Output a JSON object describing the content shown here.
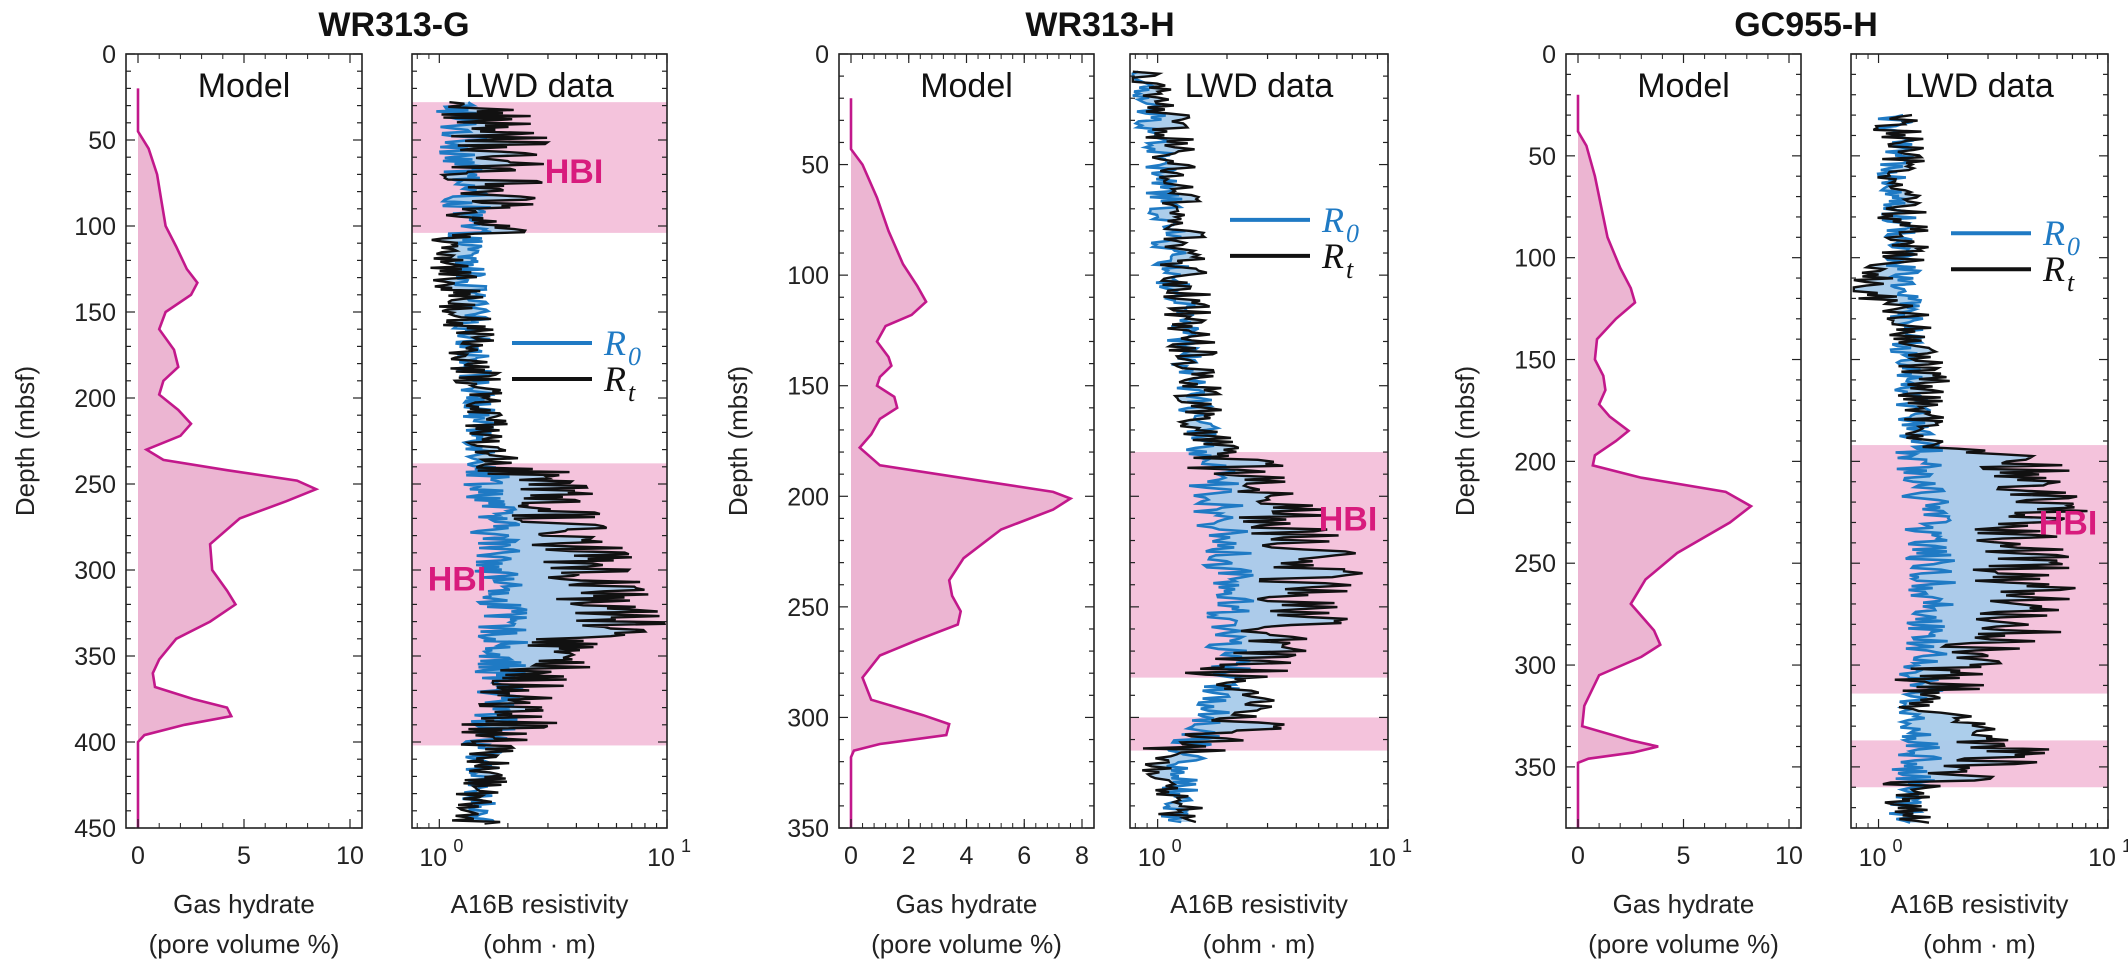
{
  "colors": {
    "model_line": "#c2188b",
    "model_fill": "#ecb5d2",
    "hbi_band": "#f4c3dc",
    "r0_line": "#1f7ac4",
    "rt_line": "#111111",
    "gap_fill": "#a8cbea",
    "hbi_text": "#d81b7d",
    "axis": "#222222"
  },
  "common": {
    "ylabel": "Depth (mbsf)",
    "model_title": "Model",
    "lwd_title": "LWD data",
    "model_xlabel_1": "Gas hydrate",
    "model_xlabel_2": "(pore volume %)",
    "lwd_xlabel_1": "A16B resistivity",
    "lwd_xlabel_2": "(ohm · m)",
    "hbi_label": "HBI",
    "legend_r0": "R",
    "legend_r0_sub": "0",
    "legend_rt": "R",
    "legend_rt_sub": "t"
  },
  "chart_data": [
    {
      "type": "line",
      "well": "WR313-G",
      "ylim": [
        0,
        450
      ],
      "yticks": [
        0,
        50,
        100,
        150,
        200,
        250,
        300,
        350,
        400,
        450
      ],
      "model": {
        "xlim": [
          0,
          10
        ],
        "xticks": [
          "0",
          "5",
          "10"
        ],
        "depth_start": 20,
        "depth_end": 450,
        "points": [
          [
            20,
            0
          ],
          [
            45,
            0
          ],
          [
            55,
            0.5
          ],
          [
            70,
            0.9
          ],
          [
            85,
            1.1
          ],
          [
            100,
            1.3
          ],
          [
            112,
            1.8
          ],
          [
            125,
            2.3
          ],
          [
            133,
            2.8
          ],
          [
            140,
            2.5
          ],
          [
            150,
            1.3
          ],
          [
            160,
            1.0
          ],
          [
            172,
            1.7
          ],
          [
            182,
            1.9
          ],
          [
            190,
            1.2
          ],
          [
            198,
            1.0
          ],
          [
            207,
            1.9
          ],
          [
            215,
            2.5
          ],
          [
            222,
            2.0
          ],
          [
            230,
            0.4
          ],
          [
            236,
            1.2
          ],
          [
            242,
            4.2
          ],
          [
            248,
            7.5
          ],
          [
            253,
            8.4
          ],
          [
            260,
            7.0
          ],
          [
            270,
            4.8
          ],
          [
            285,
            3.4
          ],
          [
            300,
            3.5
          ],
          [
            312,
            4.2
          ],
          [
            320,
            4.6
          ],
          [
            330,
            3.4
          ],
          [
            340,
            1.8
          ],
          [
            352,
            1.0
          ],
          [
            360,
            0.7
          ],
          [
            368,
            0.8
          ],
          [
            375,
            2.6
          ],
          [
            380,
            4.2
          ],
          [
            385,
            4.4
          ],
          [
            390,
            2.2
          ],
          [
            396,
            0.3
          ],
          [
            400,
            0
          ],
          [
            450,
            0
          ]
        ]
      },
      "lwd": {
        "xlim_log": [
          0,
          1
        ],
        "xtick_values": [
          1,
          10
        ],
        "depth_start": 28,
        "depth_end": 448,
        "hbi_intervals": [
          [
            28,
            104
          ],
          [
            238,
            402
          ]
        ],
        "hbi_label_depths": [
          68,
          305
        ],
        "legend_depth": 168,
        "r0_profile": [
          [
            28,
            1.2
          ],
          [
            60,
            1.3
          ],
          [
            100,
            1.3
          ],
          [
            130,
            1.35
          ],
          [
            200,
            1.45
          ],
          [
            230,
            1.55
          ],
          [
            260,
            1.7
          ],
          [
            300,
            1.85
          ],
          [
            340,
            1.9
          ],
          [
            380,
            1.8
          ],
          [
            410,
            1.55
          ],
          [
            448,
            1.45
          ]
        ],
        "rt_profile": [
          [
            28,
            1.5
          ],
          [
            50,
            1.8
          ],
          [
            80,
            1.7
          ],
          [
            104,
            1.5
          ],
          [
            110,
            1.0
          ],
          [
            130,
            1.2
          ],
          [
            160,
            1.35
          ],
          [
            200,
            1.5
          ],
          [
            232,
            1.6
          ],
          [
            245,
            2.4
          ],
          [
            260,
            3.0
          ],
          [
            290,
            4.2
          ],
          [
            310,
            5.2
          ],
          [
            330,
            6.0
          ],
          [
            350,
            3.0
          ],
          [
            370,
            2.3
          ],
          [
            395,
            1.9
          ],
          [
            410,
            1.6
          ],
          [
            448,
            1.45
          ]
        ]
      }
    },
    {
      "type": "line",
      "well": "WR313-H",
      "ylim": [
        0,
        350
      ],
      "yticks": [
        0,
        50,
        100,
        150,
        200,
        250,
        300,
        350
      ],
      "model": {
        "xlim": [
          0,
          8
        ],
        "xticks": [
          "0",
          "2",
          "4",
          "6",
          "8"
        ],
        "depth_start": 20,
        "depth_end": 350,
        "points": [
          [
            20,
            0
          ],
          [
            43,
            0
          ],
          [
            50,
            0.4
          ],
          [
            65,
            0.9
          ],
          [
            80,
            1.3
          ],
          [
            95,
            1.8
          ],
          [
            105,
            2.3
          ],
          [
            112,
            2.6
          ],
          [
            118,
            2.1
          ],
          [
            123,
            1.2
          ],
          [
            130,
            0.9
          ],
          [
            137,
            1.3
          ],
          [
            141,
            1.4
          ],
          [
            146,
            1.0
          ],
          [
            150,
            0.9
          ],
          [
            155,
            1.5
          ],
          [
            160,
            1.6
          ],
          [
            165,
            1.0
          ],
          [
            172,
            0.7
          ],
          [
            178,
            0.3
          ],
          [
            186,
            1.0
          ],
          [
            193,
            4.5
          ],
          [
            198,
            7.0
          ],
          [
            201,
            7.6
          ],
          [
            206,
            7.0
          ],
          [
            215,
            5.2
          ],
          [
            228,
            3.9
          ],
          [
            238,
            3.4
          ],
          [
            245,
            3.5
          ],
          [
            252,
            3.8
          ],
          [
            258,
            3.7
          ],
          [
            265,
            2.3
          ],
          [
            272,
            1.0
          ],
          [
            282,
            0.4
          ],
          [
            292,
            0.7
          ],
          [
            299,
            2.5
          ],
          [
            303,
            3.4
          ],
          [
            308,
            3.3
          ],
          [
            312,
            1.0
          ],
          [
            315,
            0.1
          ],
          [
            318,
            0
          ],
          [
            350,
            0
          ]
        ]
      },
      "lwd": {
        "xlim_log": [
          0,
          1
        ],
        "xtick_values": [
          1,
          10
        ],
        "depth_start": 8,
        "depth_end": 348,
        "hbi_intervals": [
          [
            180,
            282
          ],
          [
            300,
            315
          ]
        ],
        "hbi_label_depths": [
          210
        ],
        "legend_depth": 75,
        "r0_profile": [
          [
            8,
            0.75
          ],
          [
            30,
            0.95
          ],
          [
            60,
            1.05
          ],
          [
            100,
            1.15
          ],
          [
            140,
            1.35
          ],
          [
            175,
            1.55
          ],
          [
            200,
            1.8
          ],
          [
            240,
            2.1
          ],
          [
            280,
            2.0
          ],
          [
            300,
            1.7
          ],
          [
            320,
            1.3
          ],
          [
            348,
            1.2
          ]
        ],
        "rt_profile": [
          [
            8,
            0.8
          ],
          [
            30,
            1.1
          ],
          [
            60,
            1.2
          ],
          [
            100,
            1.3
          ],
          [
            140,
            1.45
          ],
          [
            175,
            1.65
          ],
          [
            190,
            2.4
          ],
          [
            210,
            3.3
          ],
          [
            232,
            4.8
          ],
          [
            250,
            4.4
          ],
          [
            270,
            3.0
          ],
          [
            282,
            2.0
          ],
          [
            292,
            2.6
          ],
          [
            305,
            2.4
          ],
          [
            318,
            1.0
          ],
          [
            335,
            1.2
          ],
          [
            348,
            1.25
          ]
        ]
      }
    },
    {
      "type": "line",
      "well": "GC955-H",
      "ylim": [
        0,
        380
      ],
      "yticks": [
        0,
        50,
        100,
        150,
        200,
        250,
        300,
        350
      ],
      "model": {
        "xlim": [
          0,
          10
        ],
        "xticks": [
          "0",
          "5",
          "10"
        ],
        "depth_start": 20,
        "depth_end": 380,
        "points": [
          [
            20,
            0
          ],
          [
            38,
            0
          ],
          [
            45,
            0.4
          ],
          [
            60,
            0.8
          ],
          [
            75,
            1.1
          ],
          [
            90,
            1.4
          ],
          [
            105,
            2.0
          ],
          [
            115,
            2.5
          ],
          [
            122,
            2.7
          ],
          [
            130,
            1.8
          ],
          [
            140,
            0.9
          ],
          [
            150,
            0.8
          ],
          [
            158,
            1.2
          ],
          [
            165,
            1.3
          ],
          [
            172,
            1.0
          ],
          [
            178,
            1.5
          ],
          [
            185,
            2.4
          ],
          [
            190,
            1.8
          ],
          [
            197,
            0.8
          ],
          [
            202,
            0.7
          ],
          [
            208,
            3.0
          ],
          [
            215,
            7.0
          ],
          [
            222,
            8.2
          ],
          [
            230,
            7.2
          ],
          [
            245,
            4.7
          ],
          [
            258,
            3.2
          ],
          [
            270,
            2.5
          ],
          [
            283,
            3.6
          ],
          [
            290,
            3.9
          ],
          [
            296,
            3.0
          ],
          [
            305,
            1.0
          ],
          [
            320,
            0.3
          ],
          [
            330,
            0.2
          ],
          [
            337,
            2.5
          ],
          [
            340,
            3.8
          ],
          [
            343,
            2.6
          ],
          [
            346,
            0.5
          ],
          [
            348,
            0
          ],
          [
            380,
            0
          ]
        ]
      },
      "lwd": {
        "xlim_log": [
          0,
          1
        ],
        "xtick_values": [
          1,
          10
        ],
        "depth_start": 30,
        "depth_end": 378,
        "hbi_intervals": [
          [
            192,
            314
          ],
          [
            337,
            360
          ]
        ],
        "hbi_label_depths": [
          230
        ],
        "legend_depth": 88,
        "r0_profile": [
          [
            30,
            1.15
          ],
          [
            60,
            1.2
          ],
          [
            100,
            1.25
          ],
          [
            140,
            1.35
          ],
          [
            180,
            1.45
          ],
          [
            192,
            1.5
          ],
          [
            230,
            1.65
          ],
          [
            270,
            1.7
          ],
          [
            300,
            1.55
          ],
          [
            320,
            1.4
          ],
          [
            345,
            1.5
          ],
          [
            360,
            1.35
          ],
          [
            378,
            1.3
          ]
        ],
        "rt_profile": [
          [
            30,
            1.2
          ],
          [
            60,
            1.25
          ],
          [
            100,
            1.3
          ],
          [
            115,
            0.8
          ],
          [
            125,
            1.3
          ],
          [
            140,
            1.4
          ],
          [
            158,
            1.6
          ],
          [
            175,
            1.5
          ],
          [
            192,
            1.6
          ],
          [
            205,
            4.5
          ],
          [
            215,
            5.5
          ],
          [
            240,
            4.0
          ],
          [
            265,
            4.5
          ],
          [
            285,
            3.8
          ],
          [
            300,
            2.0
          ],
          [
            320,
            1.5
          ],
          [
            345,
            3.8
          ],
          [
            360,
            1.4
          ],
          [
            378,
            1.3
          ]
        ]
      }
    }
  ]
}
